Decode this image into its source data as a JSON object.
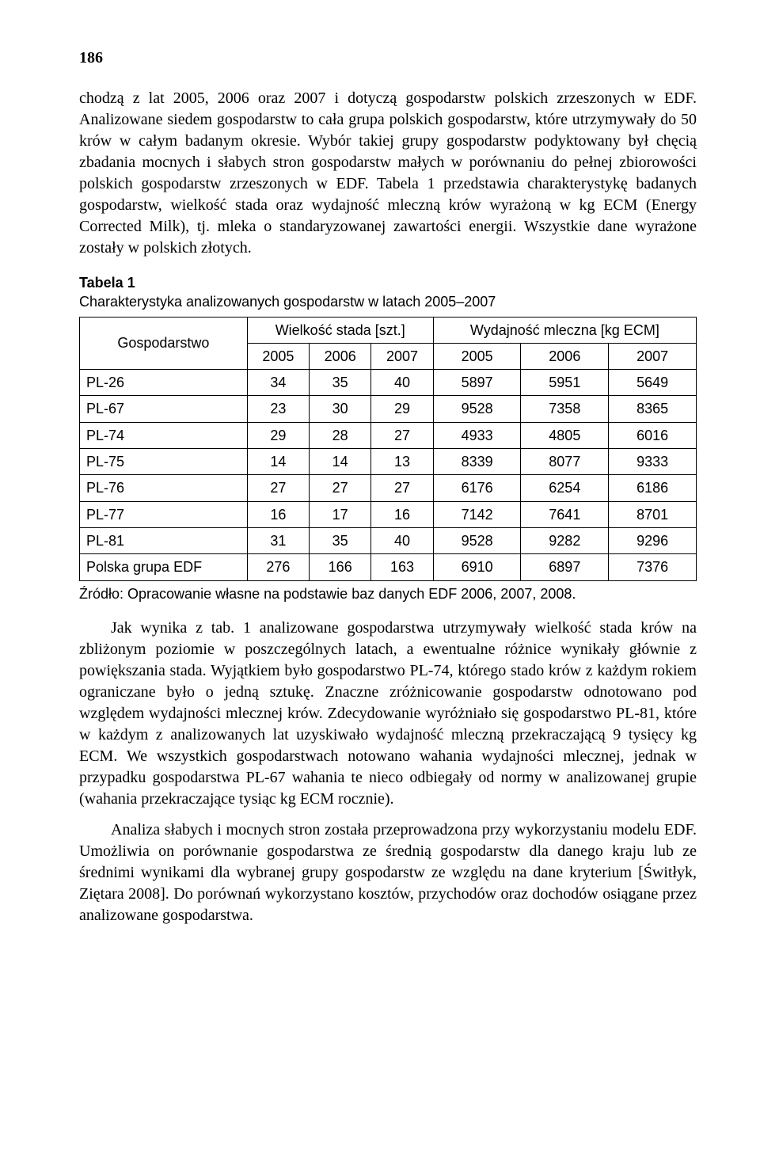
{
  "page_number": "186",
  "para1": "chodzą z lat 2005, 2006 oraz 2007 i dotyczą gospodarstw polskich zrzeszonych w EDF. Analizowane siedem gospodarstw to cała grupa polskich gospodarstw, które utrzymywały do 50 krów w całym badanym okresie. Wybór takiej grupy gospodarstw podyktowany był chęcią zbadania mocnych i słabych stron gospodarstw małych w porównaniu do pełnej zbiorowości polskich gospodarstw zrzeszonych w EDF. Tabela 1 przedstawia charakterystykę badanych gospodarstw, wielkość stada oraz wydajność mleczną krów wyrażoną w kg ECM (Energy Corrected Milk), tj. mleka o standaryzowanej zawartości energii. Wszystkie dane wyrażone zostały w polskich złotych.",
  "table": {
    "label": "Tabela 1",
    "caption": "Charakterystyka analizowanych gospodarstw w latach 2005–2007",
    "row_header": "Gospodarstwo",
    "group_headers": [
      "Wielkość stada [szt.]",
      "Wydajność mleczna [kg ECM]"
    ],
    "year_headers": [
      "2005",
      "2006",
      "2007",
      "2005",
      "2006",
      "2007"
    ],
    "rows": [
      {
        "label": "PL-26",
        "vals": [
          "34",
          "35",
          "40",
          "5897",
          "5951",
          "5649"
        ]
      },
      {
        "label": "PL-67",
        "vals": [
          "23",
          "30",
          "29",
          "9528",
          "7358",
          "8365"
        ]
      },
      {
        "label": "PL-74",
        "vals": [
          "29",
          "28",
          "27",
          "4933",
          "4805",
          "6016"
        ]
      },
      {
        "label": "PL-75",
        "vals": [
          "14",
          "14",
          "13",
          "8339",
          "8077",
          "9333"
        ]
      },
      {
        "label": "PL-76",
        "vals": [
          "27",
          "27",
          "27",
          "6176",
          "6254",
          "6186"
        ]
      },
      {
        "label": "PL-77",
        "vals": [
          "16",
          "17",
          "16",
          "7142",
          "7641",
          "8701"
        ]
      },
      {
        "label": "PL-81",
        "vals": [
          "31",
          "35",
          "40",
          "9528",
          "9282",
          "9296"
        ]
      },
      {
        "label": "Polska grupa EDF",
        "vals": [
          "276",
          "166",
          "163",
          "6910",
          "6897",
          "7376"
        ]
      }
    ],
    "source": "Źródło: Opracowanie własne na podstawie baz danych EDF 2006, 2007, 2008."
  },
  "para2": "Jak wynika z tab. 1 analizowane gospodarstwa utrzymywały wielkość stada krów na zbliżonym poziomie w poszczególnych latach, a ewentualne różnice wynikały głównie z powiększania stada. Wyjątkiem było gospodarstwo PL-74, którego stado krów z każdym rokiem ograniczane było o jedną sztukę. Znaczne zróżnicowanie gospodarstw odnotowano pod względem wydajności mlecznej krów. Zdecydowanie wyróżniało się gospodarstwo PL-81, które w każdym z analizowanych lat uzyskiwało wydajność mleczną przekraczającą 9 tysięcy kg ECM. We wszystkich gospodarstwach notowano wahania wydajności mlecznej, jednak w przypadku gospodarstwa PL-67 wahania te nieco odbiegały od normy w analizowanej grupie (wahania przekraczające tysiąc kg ECM rocznie).",
  "para3": "Analiza słabych i mocnych stron została przeprowadzona przy wykorzystaniu modelu EDF. Umożliwia on porównanie gospodarstwa ze średnią gospodarstw dla danego kraju lub ze średnimi wynikami dla wybranej grupy gospodarstw ze względu na dane kryterium [Świtłyk, Ziętara 2008]. Do porównań wykorzystano kosztów, przychodów oraz dochodów osiągane przez analizowane gospodarstwa."
}
